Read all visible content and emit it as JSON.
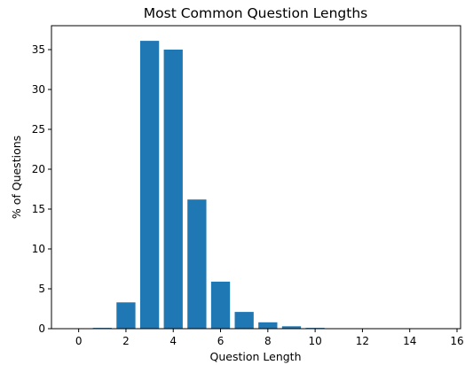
{
  "chart_data": {
    "type": "bar",
    "title": "Most Common Question Lengths",
    "xlabel": "Question Length",
    "ylabel": "% of Questions",
    "x": [
      1,
      2,
      3,
      4,
      5,
      6,
      7,
      8,
      9,
      10,
      11,
      12,
      13,
      14,
      15
    ],
    "values": [
      0.1,
      3.3,
      36.1,
      35.0,
      16.2,
      5.9,
      2.1,
      0.8,
      0.3,
      0.1,
      0.05,
      0.02,
      0.01,
      0.01,
      0.01
    ],
    "xlim": [
      -1.15,
      16.15
    ],
    "ylim": [
      0,
      38
    ],
    "xticks": [
      0,
      2,
      4,
      6,
      8,
      10,
      12,
      14,
      16
    ],
    "yticks": [
      0,
      5,
      10,
      15,
      20,
      25,
      30,
      35
    ],
    "bar_color": "#1f77b4",
    "grid": false
  }
}
